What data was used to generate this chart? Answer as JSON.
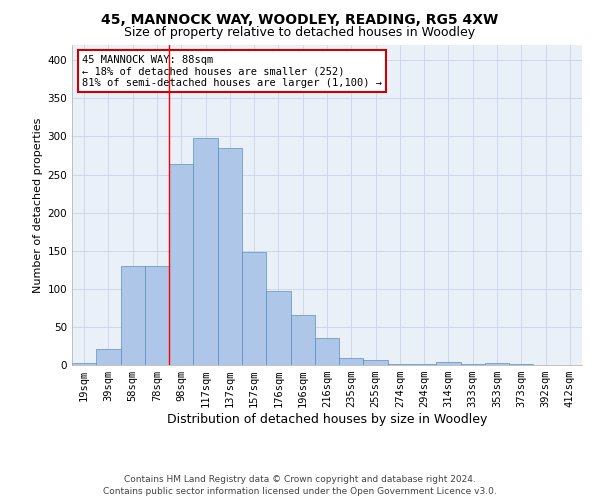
{
  "title": "45, MANNOCK WAY, WOODLEY, READING, RG5 4XW",
  "subtitle": "Size of property relative to detached houses in Woodley",
  "xlabel": "Distribution of detached houses by size in Woodley",
  "ylabel": "Number of detached properties",
  "categories": [
    "19sqm",
    "39sqm",
    "58sqm",
    "78sqm",
    "98sqm",
    "117sqm",
    "137sqm",
    "157sqm",
    "176sqm",
    "196sqm",
    "216sqm",
    "235sqm",
    "255sqm",
    "274sqm",
    "294sqm",
    "314sqm",
    "333sqm",
    "353sqm",
    "373sqm",
    "392sqm",
    "412sqm"
  ],
  "values": [
    2,
    21,
    130,
    130,
    264,
    298,
    285,
    148,
    97,
    65,
    35,
    9,
    6,
    1,
    1,
    4,
    1,
    3,
    1,
    0,
    0
  ],
  "bar_color": "#aec6e8",
  "bar_edge_color": "#5a8fc2",
  "annotation_text": "45 MANNOCK WAY: 88sqm\n← 18% of detached houses are smaller (252)\n81% of semi-detached houses are larger (1,100) →",
  "annotation_box_color": "#ffffff",
  "annotation_box_edge": "#cc0000",
  "ylim": [
    0,
    420
  ],
  "yticks": [
    0,
    50,
    100,
    150,
    200,
    250,
    300,
    350,
    400
  ],
  "footer_line1": "Contains HM Land Registry data © Crown copyright and database right 2024.",
  "footer_line2": "Contains public sector information licensed under the Open Government Licence v3.0.",
  "bg_color": "#ffffff",
  "grid_color": "#c8d4e8",
  "title_fontsize": 10,
  "subtitle_fontsize": 9,
  "xlabel_fontsize": 9,
  "ylabel_fontsize": 8,
  "tick_fontsize": 7.5,
  "footer_fontsize": 6.5
}
